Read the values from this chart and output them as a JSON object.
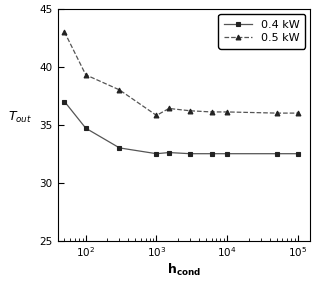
{
  "title": "",
  "xlabel": "h_{cond}",
  "ylabel": "T_{out}",
  "xlim_log": [
    40,
    150000
  ],
  "ylim": [
    25,
    45
  ],
  "yticks": [
    25,
    30,
    35,
    40,
    45
  ],
  "xtick_positions": [
    100,
    1000,
    10000,
    100000
  ],
  "series": [
    {
      "label": "0.4 kW",
      "linestyle": "-",
      "marker": "s",
      "x": [
        50,
        100,
        300,
        1000,
        1500,
        3000,
        6000,
        10000,
        50000,
        100000
      ],
      "y": [
        37.0,
        34.7,
        33.0,
        32.5,
        32.6,
        32.5,
        32.5,
        32.5,
        32.5,
        32.5
      ]
    },
    {
      "label": "0.5 kW",
      "linestyle": "--",
      "marker": "^",
      "x": [
        50,
        100,
        300,
        1000,
        1500,
        3000,
        6000,
        10000,
        50000,
        100000
      ],
      "y": [
        43.0,
        39.3,
        38.0,
        35.8,
        36.4,
        36.2,
        36.1,
        36.1,
        36.0,
        36.0
      ]
    }
  ],
  "line_color": "#555555",
  "marker_color": "#222222",
  "legend_loc": "upper right",
  "background_color": "#ffffff",
  "tick_fontsize": 7.5,
  "label_fontsize": 9,
  "legend_fontsize": 8
}
